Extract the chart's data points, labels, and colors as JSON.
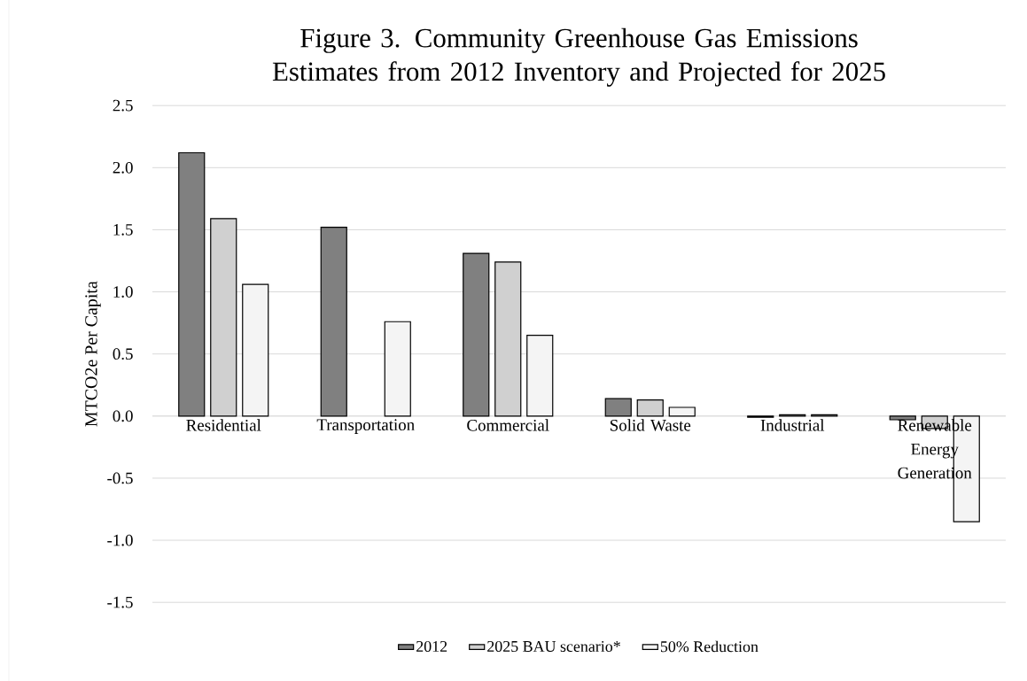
{
  "chart_data": {
    "type": "bar",
    "title": "Figure 3. Community Greenhouse Gas Emissions Estimates from 2012 Inventory and Projected for 2025",
    "ylabel": "MTCO2e Per Capita",
    "categories": [
      "Residential",
      "Transportation",
      "Commercial",
      "Solid Waste",
      "Industrial",
      "Renewable Energy Generation"
    ],
    "series": [
      {
        "name": "2012",
        "color": "#808080",
        "values": [
          2.12,
          1.52,
          1.31,
          0.14,
          -0.01,
          -0.03
        ]
      },
      {
        "name": "2025 BAU scenario*",
        "color": "#d0d0d0",
        "values": [
          1.59,
          null,
          1.24,
          0.13,
          0.01,
          -0.1
        ]
      },
      {
        "name": "50% Reduction",
        "color": "#f4f4f4",
        "values": [
          1.06,
          0.76,
          0.65,
          0.07,
          0.01,
          -0.85
        ]
      }
    ],
    "ylim": [
      -1.5,
      2.5
    ],
    "yticks": [
      {
        "value": -1.5,
        "label": "-1.5"
      },
      {
        "value": -1.0,
        "label": "-1.0"
      },
      {
        "value": -0.5,
        "label": "-0.5"
      },
      {
        "value": 0,
        "label": "0.0"
      },
      {
        "value": 0.5,
        "label": "0.5"
      },
      {
        "value": 1.0,
        "label": "1.0"
      },
      {
        "value": 1.5,
        "label": "1.5"
      },
      {
        "value": 2.0,
        "label": "2.0"
      },
      {
        "value": 2.5,
        "label": "2.5"
      }
    ],
    "grid": "y",
    "legend": "bottom"
  }
}
